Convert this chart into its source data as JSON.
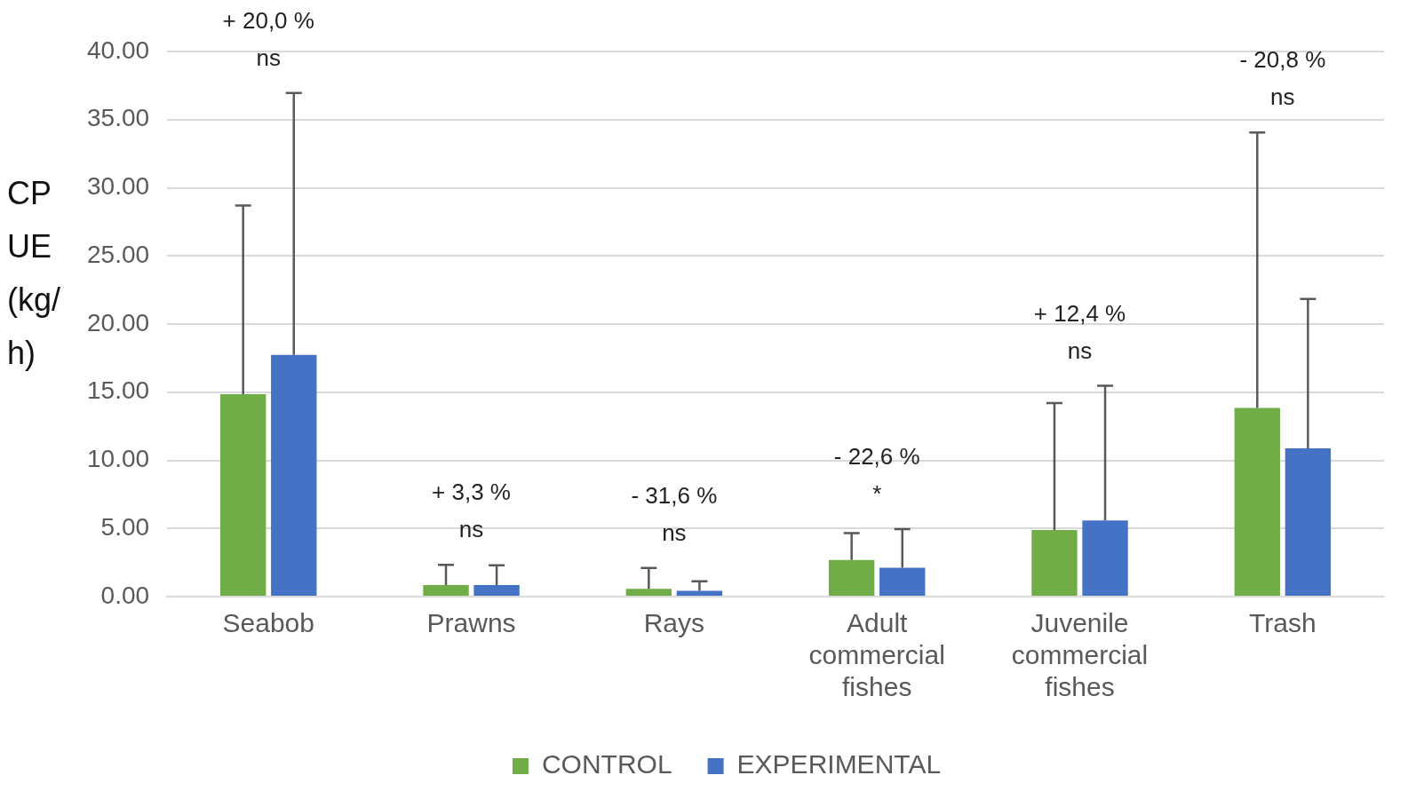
{
  "chart_data": {
    "type": "bar",
    "ylabel": "CPUE (kg/h)",
    "categories": [
      "Seabob",
      "Prawns",
      "Rays",
      "Adult commercial fishes",
      "Juvenile commercial fishes",
      "Trash"
    ],
    "series": [
      {
        "name": "CONTROL",
        "color": "#70ad47",
        "values": [
          14.85,
          0.85,
          0.57,
          2.69,
          4.88,
          13.85
        ],
        "errors": [
          [
            14.85,
            28.7
          ],
          [
            0.85,
            2.33
          ],
          [
            0.57,
            2.1
          ],
          [
            2.69,
            4.66
          ],
          [
            4.88,
            14.2
          ],
          [
            13.85,
            34.06
          ]
        ]
      },
      {
        "name": "EXPERIMENTAL",
        "color": "#4472c4",
        "values": [
          17.74,
          0.85,
          0.42,
          2.12,
          5.58,
          10.88
        ],
        "errors": [
          [
            17.74,
            36.96
          ],
          [
            0.85,
            2.3
          ],
          [
            0.42,
            1.13
          ],
          [
            2.12,
            4.95
          ],
          [
            5.58,
            15.48
          ],
          [
            10.88,
            21.84
          ]
        ]
      }
    ],
    "ylim": [
      0,
      40
    ],
    "yticks": [
      {
        "value": 0,
        "label": "0.00"
      },
      {
        "value": 5,
        "label": "5.00"
      },
      {
        "value": 10,
        "label": "10.00"
      },
      {
        "value": 15,
        "label": "15.00"
      },
      {
        "value": 20,
        "label": "20.00"
      },
      {
        "value": 25,
        "label": "25.00"
      },
      {
        "value": 30,
        "label": "30.00"
      },
      {
        "value": 35,
        "label": "35.00"
      },
      {
        "value": 40,
        "label": "40.00"
      }
    ],
    "grid": "y",
    "legend": "bottom",
    "annotations": [
      "+ 20,0 %",
      "ns",
      "+ 3,3 %",
      "ns",
      "- 31,6 %",
      "ns",
      "- 22,6 %",
      "*",
      "+ 12,4 %",
      "ns",
      "- 20,8 %",
      "ns"
    ]
  }
}
